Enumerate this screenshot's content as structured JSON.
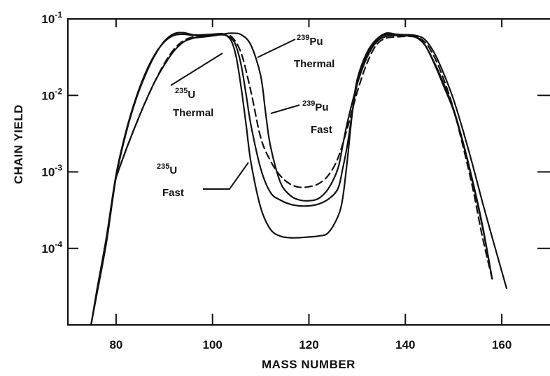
{
  "chart_data": {
    "type": "line",
    "title": "",
    "xlabel": "MASS NUMBER",
    "ylabel": "CHAIN YIELD",
    "xlim": [
      70,
      170
    ],
    "ylim": [
      1e-05,
      0.1
    ],
    "y_scale": "log",
    "grid": false,
    "x_ticks": [
      80,
      100,
      120,
      140,
      160
    ],
    "x_tick_labels": [
      "80",
      "100",
      "120",
      "140",
      "160"
    ],
    "y_ticks": [
      0.1,
      0.01,
      0.001,
      0.0001
    ],
    "y_tick_labels": [
      {
        "base": "10",
        "exp": "-1"
      },
      {
        "base": "10",
        "exp": "-2"
      },
      {
        "base": "10",
        "exp": "-3"
      },
      {
        "base": "10",
        "exp": "-4"
      }
    ],
    "series": [
      {
        "name": "235U Thermal",
        "style": "solid",
        "x": [
          74.8,
          76,
          78,
          80,
          82,
          84,
          86,
          88,
          90,
          92,
          94,
          96,
          98,
          100,
          102,
          103,
          104,
          105,
          106,
          107,
          108,
          110,
          112,
          114,
          116,
          118,
          120,
          122,
          124,
          126,
          127,
          128,
          129,
          130,
          132,
          134,
          136,
          138,
          140,
          142,
          144,
          146,
          148,
          150,
          152,
          154,
          156,
          158
        ],
        "y": [
          1e-05,
          2.5e-05,
          0.00012,
          0.00085,
          0.0031,
          0.0084,
          0.018,
          0.033,
          0.051,
          0.064,
          0.066,
          0.062,
          0.062,
          0.063,
          0.064,
          0.06,
          0.05,
          0.03,
          0.012,
          0.004,
          0.0013,
          0.00034,
          0.000178,
          0.000145,
          0.000138,
          0.000138,
          0.000141,
          0.000145,
          0.00016,
          0.00026,
          0.00045,
          0.0015,
          0.006,
          0.016,
          0.036,
          0.054,
          0.065,
          0.063,
          0.062,
          0.06,
          0.046,
          0.026,
          0.013,
          0.0063,
          0.0023,
          0.00071,
          0.00019,
          4e-05
        ]
      },
      {
        "name": "235U Fast",
        "style": "solid",
        "x": [
          74.8,
          76,
          78,
          80,
          82,
          84,
          86,
          88,
          90,
          92,
          94,
          96,
          98,
          100,
          102,
          104,
          105,
          106,
          107,
          108,
          110,
          112,
          114,
          116,
          118,
          120,
          122,
          124,
          126,
          127,
          128,
          129,
          130,
          132,
          134,
          136,
          138,
          140,
          142,
          144,
          146,
          148,
          150,
          152,
          154,
          156,
          158
        ],
        "y": [
          1e-05,
          2.8e-05,
          0.00014,
          0.00092,
          0.0033,
          0.0088,
          0.019,
          0.034,
          0.05,
          0.061,
          0.063,
          0.061,
          0.061,
          0.062,
          0.063,
          0.055,
          0.042,
          0.024,
          0.01,
          0.004,
          0.0011,
          0.00054,
          0.00043,
          0.00038,
          0.00036,
          0.00036,
          0.00038,
          0.00044,
          0.0006,
          0.0011,
          0.0023,
          0.006,
          0.014,
          0.034,
          0.053,
          0.062,
          0.061,
          0.06,
          0.058,
          0.046,
          0.027,
          0.014,
          0.0066,
          0.0024,
          0.00074,
          0.0002,
          4e-05
        ]
      },
      {
        "name": "239Pu Thermal",
        "style": "dashed",
        "x": [
          80,
          82,
          84,
          86,
          88,
          90,
          92,
          94,
          96,
          98,
          100,
          102,
          104,
          106,
          108,
          110,
          112,
          114,
          116,
          118,
          120,
          122,
          124,
          126,
          128,
          130,
          132,
          134,
          136,
          138,
          140,
          142,
          144,
          146,
          148,
          150,
          152,
          154,
          156,
          158
        ],
        "y": [
          0.00085,
          0.0019,
          0.004,
          0.008,
          0.015,
          0.026,
          0.04,
          0.052,
          0.058,
          0.06,
          0.061,
          0.062,
          0.058,
          0.035,
          0.011,
          0.0028,
          0.0014,
          0.0009,
          0.0007,
          0.00063,
          0.00064,
          0.0007,
          0.0009,
          0.0015,
          0.0038,
          0.011,
          0.026,
          0.046,
          0.056,
          0.058,
          0.059,
          0.058,
          0.05,
          0.032,
          0.016,
          0.0066,
          0.0021,
          0.0006,
          0.00014,
          4e-05
        ]
      },
      {
        "name": "239Pu Fast",
        "style": "solid",
        "x": [
          80,
          82,
          84,
          86,
          88,
          90,
          92,
          94,
          96,
          98,
          100,
          102,
          104,
          106,
          108,
          110,
          111,
          112,
          114,
          116,
          118,
          120,
          122,
          124,
          126,
          127,
          128,
          130,
          132,
          134,
          136,
          138,
          140,
          142,
          144,
          146,
          148,
          150,
          152,
          154,
          156,
          158,
          160,
          161
        ],
        "y": [
          0.00085,
          0.0019,
          0.004,
          0.008,
          0.015,
          0.025,
          0.038,
          0.05,
          0.056,
          0.058,
          0.06,
          0.063,
          0.065,
          0.062,
          0.045,
          0.018,
          0.006,
          0.0022,
          0.00075,
          0.0005,
          0.00043,
          0.00042,
          0.00045,
          0.0006,
          0.0011,
          0.0022,
          0.0045,
          0.014,
          0.031,
          0.05,
          0.059,
          0.061,
          0.062,
          0.061,
          0.054,
          0.036,
          0.019,
          0.0088,
          0.0034,
          0.0012,
          0.0004,
          0.00014,
          5e-05,
          3e-05
        ]
      }
    ],
    "annotations": [
      {
        "id": "u235-thermal",
        "mass": "235",
        "element": "U",
        "state": "Thermal"
      },
      {
        "id": "u235-fast",
        "mass": "235",
        "element": "U",
        "state": "Fast"
      },
      {
        "id": "pu239-thermal",
        "mass": "239",
        "element": "Pu",
        "state": "Thermal"
      },
      {
        "id": "pu239-fast",
        "mass": "239",
        "element": "Pu",
        "state": "Fast"
      }
    ]
  }
}
